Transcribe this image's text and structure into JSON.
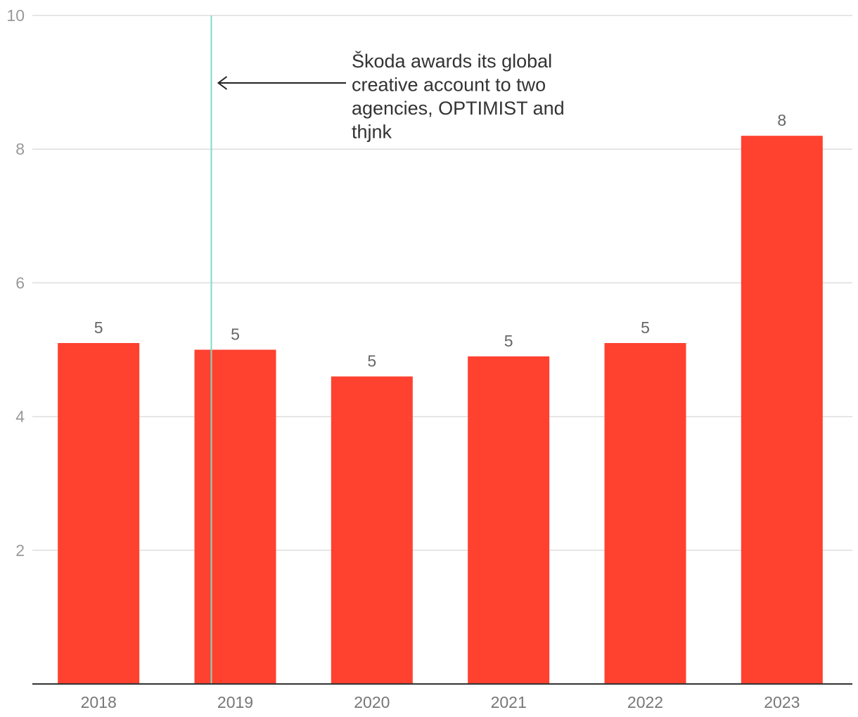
{
  "chart_data": {
    "type": "bar",
    "categories": [
      "2018",
      "2019",
      "2020",
      "2021",
      "2022",
      "2023"
    ],
    "values": [
      5.1,
      5.0,
      4.6,
      4.9,
      5.1,
      8.2
    ],
    "data_labels": [
      "5",
      "5",
      "5",
      "5",
      "5",
      "8"
    ],
    "ylim": [
      0,
      10
    ],
    "yticks": [
      2,
      4,
      6,
      8,
      10
    ],
    "title": "",
    "xlabel": "",
    "ylabel": "",
    "grid": true,
    "bar_color": "#ff4130",
    "annotation": {
      "x_category": "2019",
      "lines": [
        "Škoda awards its global",
        "creative account to two",
        "agencies, OPTIMIST and",
        "thjnk"
      ],
      "line_color": "#7fdcc6"
    }
  }
}
